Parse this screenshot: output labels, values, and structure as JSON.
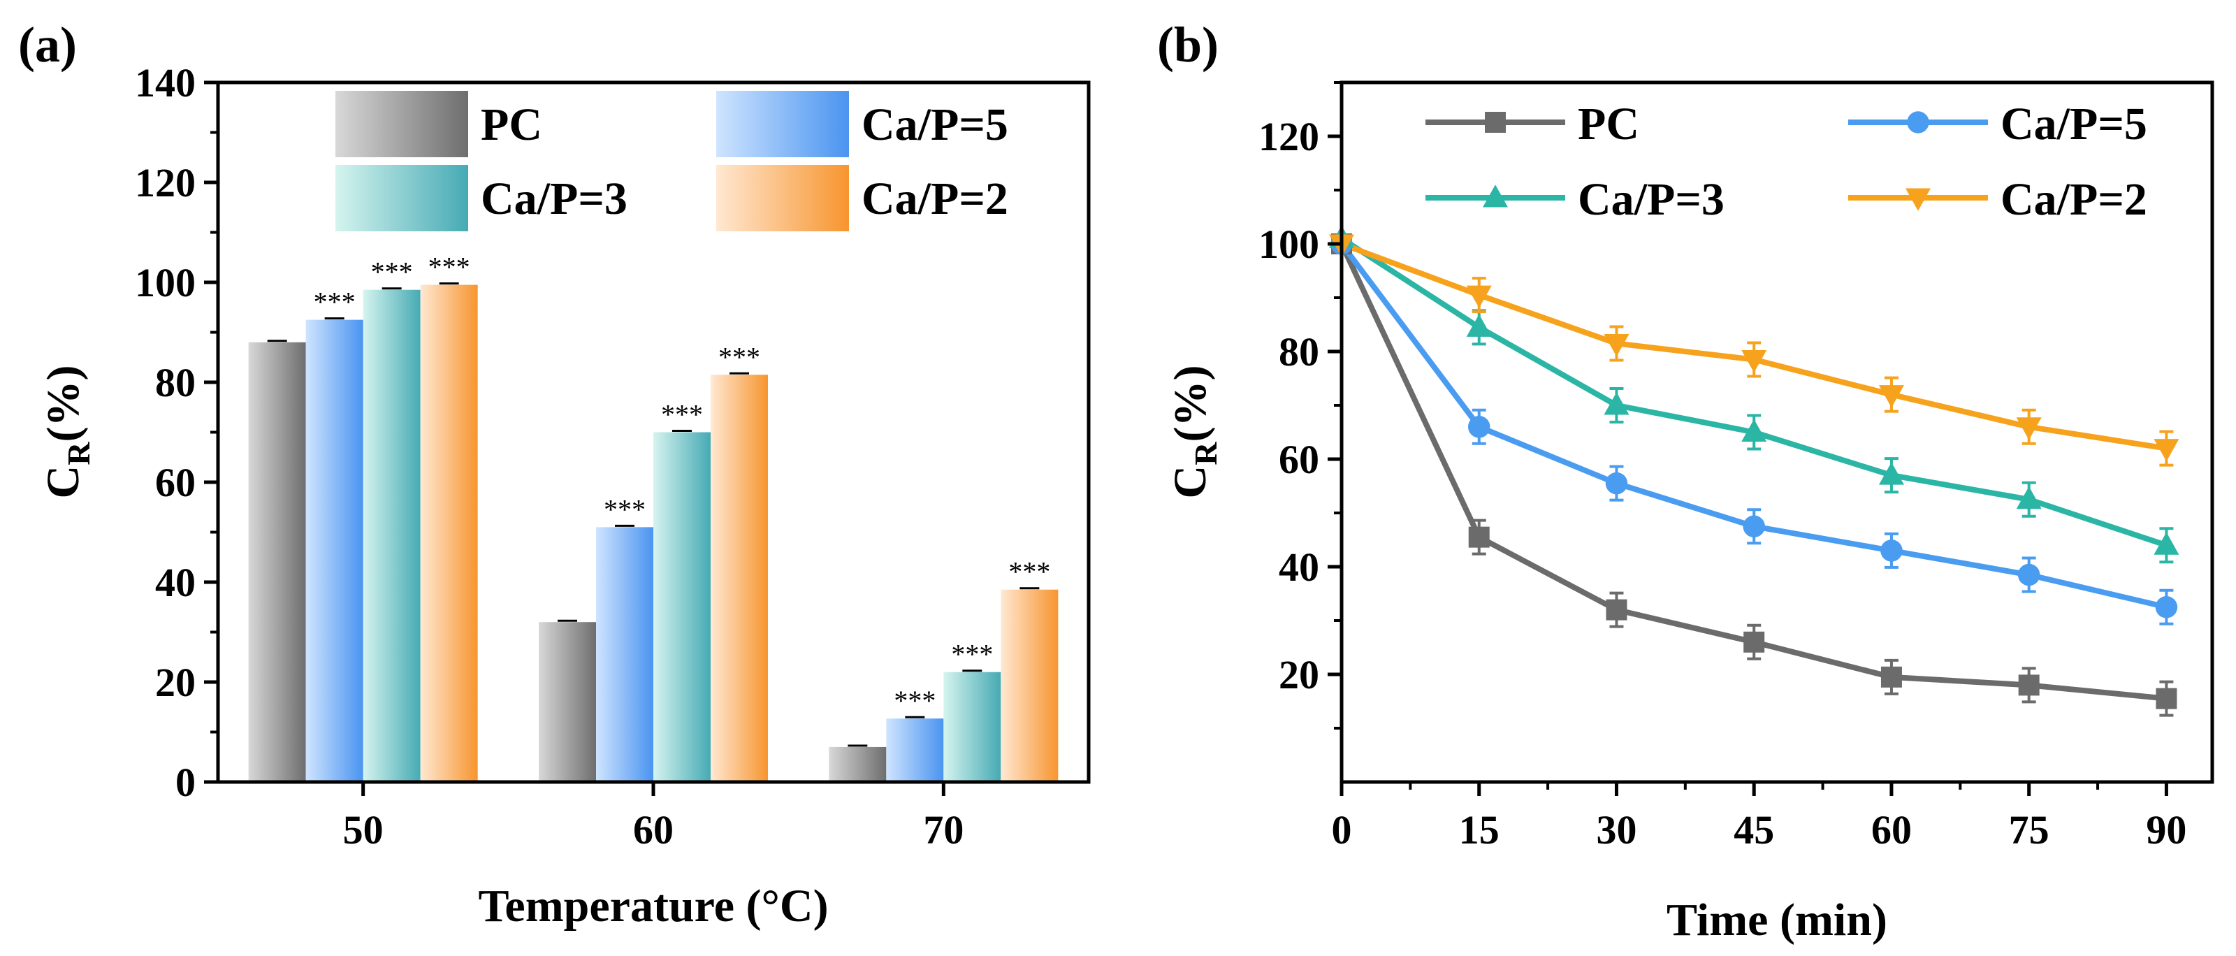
{
  "chart_data": [
    {
      "panel": "(a)",
      "type": "bar",
      "xlabel": "Temperature (°C)",
      "ylabel_main": "C",
      "ylabel_sub": "R",
      "ylabel_tail": "(%)",
      "ylim": [
        0,
        140
      ],
      "yticks": [
        "0",
        "20",
        "40",
        "60",
        "80",
        "100",
        "120",
        "140"
      ],
      "categories": [
        "50",
        "60",
        "70"
      ],
      "significance_label": "***",
      "legend": "top-right, 2 columns",
      "series": [
        {
          "name": "PC",
          "color_light": "#d8d8d8",
          "color_dark": "#6e6e6e",
          "values": [
            88,
            32,
            7
          ],
          "significant": [
            false,
            false,
            false
          ]
        },
        {
          "name": "Ca/P=5",
          "color_light": "#cfe4ff",
          "color_dark": "#4a94f0",
          "values": [
            92.5,
            51,
            12.7
          ],
          "significant": [
            true,
            true,
            true
          ]
        },
        {
          "name": "Ca/P=3",
          "color_light": "#d5f4ef",
          "color_dark": "#46aab4",
          "values": [
            98.5,
            70,
            22
          ],
          "significant": [
            true,
            true,
            true
          ]
        },
        {
          "name": "Ca/P=2",
          "color_light": "#ffe8d2",
          "color_dark": "#f7952f",
          "values": [
            99.5,
            81.5,
            38.5
          ],
          "significant": [
            true,
            true,
            true
          ]
        }
      ]
    },
    {
      "panel": "(b)",
      "type": "line",
      "xlabel": "Time (min)",
      "ylabel_main": "C",
      "ylabel_sub": "R",
      "ylabel_tail": "(%)",
      "xlim": [
        0,
        95
      ],
      "ylim": [
        0,
        130
      ],
      "xticks": [
        "0",
        "15",
        "30",
        "45",
        "60",
        "75",
        "90"
      ],
      "yticks": [
        "20",
        "40",
        "60",
        "80",
        "100",
        "120"
      ],
      "x": [
        0,
        15,
        30,
        45,
        60,
        75,
        90
      ],
      "legend": "top, 2 columns",
      "series": [
        {
          "name": "PC",
          "color": "#6b6b6b",
          "marker": "square",
          "values": [
            100,
            45.5,
            32,
            26,
            19.5,
            18,
            15.5
          ]
        },
        {
          "name": "Ca/P=5",
          "color": "#4a9cf0",
          "marker": "circle",
          "values": [
            100,
            66,
            55.5,
            47.5,
            43,
            38.5,
            32.5
          ]
        },
        {
          "name": "Ca/P=3",
          "color": "#2bb5a5",
          "marker": "triangle-up",
          "values": [
            101,
            84.5,
            70,
            65,
            57,
            52.5,
            44
          ]
        },
        {
          "name": "Ca/P=2",
          "color": "#f7a21d",
          "marker": "triangle-down",
          "values": [
            100,
            90.5,
            81.5,
            78.5,
            72,
            66,
            62
          ]
        }
      ]
    }
  ]
}
